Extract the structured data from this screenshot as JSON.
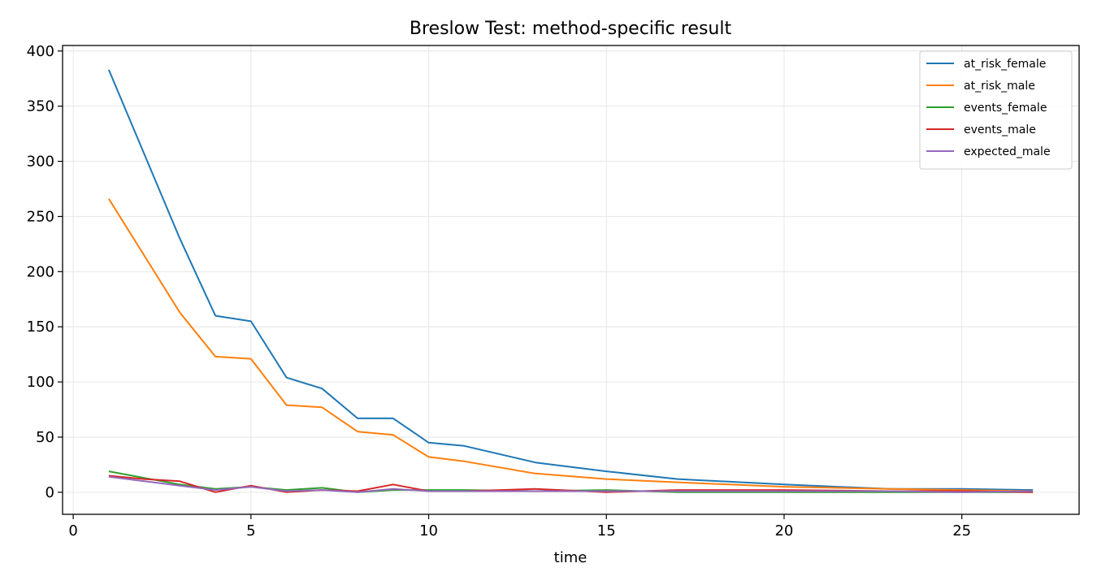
{
  "chart_data": {
    "type": "line",
    "title": "Breslow Test: method-specific result",
    "xlabel": "time",
    "ylabel": "",
    "xlim": [
      -0.3,
      28.3
    ],
    "ylim": [
      -20,
      405
    ],
    "xticks": [
      0,
      5,
      10,
      15,
      20,
      25
    ],
    "yticks": [
      0,
      50,
      100,
      150,
      200,
      250,
      300,
      350,
      400
    ],
    "grid": true,
    "legend_position": "top-right",
    "series": [
      {
        "name": "at_risk_female",
        "color": "#1f77b4",
        "x": [
          1,
          3,
          4,
          5,
          6,
          7,
          8,
          9,
          10,
          11,
          13,
          15,
          17,
          20,
          23,
          25,
          27
        ],
        "y": [
          383,
          230,
          160,
          155,
          104,
          94,
          67,
          67,
          45,
          42,
          27,
          19,
          12,
          7,
          3,
          3,
          2
        ]
      },
      {
        "name": "at_risk_male",
        "color": "#ff7f0e",
        "x": [
          1,
          3,
          4,
          5,
          6,
          7,
          8,
          9,
          10,
          11,
          13,
          15,
          17,
          20,
          23,
          25,
          27
        ],
        "y": [
          266,
          163,
          123,
          121,
          79,
          77,
          55,
          52,
          32,
          28,
          17,
          12,
          9,
          5,
          3,
          2,
          1
        ]
      },
      {
        "name": "events_female",
        "color": "#2ca02c",
        "x": [
          1,
          3,
          4,
          5,
          6,
          7,
          8,
          9,
          10,
          11,
          13,
          15,
          17,
          20,
          23,
          25,
          27
        ],
        "y": [
          19,
          7,
          3,
          5,
          2,
          4,
          0,
          2,
          2,
          2,
          1,
          2,
          0,
          0,
          0,
          0,
          0
        ]
      },
      {
        "name": "events_male",
        "color": "#d62728",
        "x": [
          1,
          2,
          3,
          4,
          5,
          6,
          7,
          8,
          9,
          10,
          11,
          13,
          15,
          17,
          20,
          23,
          25,
          27
        ],
        "y": [
          15,
          12,
          10,
          0,
          6,
          0,
          2,
          1,
          7,
          1,
          1,
          3,
          0,
          2,
          2,
          1,
          1,
          0
        ]
      },
      {
        "name": "expected_male",
        "color": "#9467bd",
        "x": [
          1,
          3,
          4,
          5,
          6,
          7,
          8,
          9,
          10,
          11,
          13,
          15,
          17,
          20,
          23,
          25,
          27
        ],
        "y": [
          14,
          6,
          2,
          5,
          1,
          2,
          0,
          3,
          1,
          1,
          1,
          1,
          1,
          1,
          1,
          0,
          1
        ]
      }
    ]
  }
}
